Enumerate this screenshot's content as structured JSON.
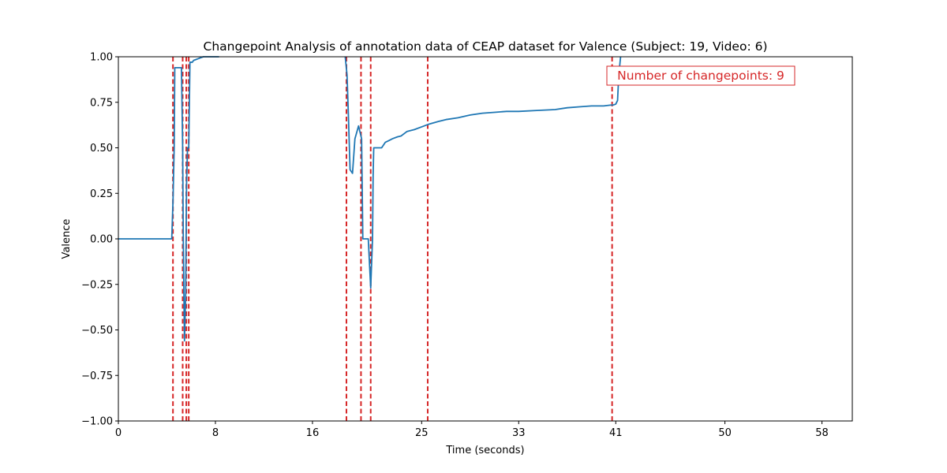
{
  "chart_data": {
    "type": "line",
    "title": "Changepoint Analysis of annotation data of CEAP dataset for Valence (Subject: 19, Video: 6)",
    "xlabel": "Time (seconds)",
    "ylabel": "Valence",
    "xlim": [
      0,
      60.5
    ],
    "ylim": [
      -1.0,
      1.0
    ],
    "x_ticks": [
      0,
      8,
      16,
      25,
      33,
      41,
      50,
      58
    ],
    "y_ticks": [
      -1.0,
      -0.75,
      -0.5,
      -0.25,
      0.0,
      0.25,
      0.5,
      0.75,
      1.0
    ],
    "x_tick_labels": [
      "0",
      "8",
      "16",
      "25",
      "33",
      "41",
      "50",
      "58"
    ],
    "y_tick_labels": [
      "−1.00",
      "−0.75",
      "−0.50",
      "−0.25",
      "0.00",
      "0.25",
      "0.50",
      "0.75",
      "1.00"
    ],
    "grid": false,
    "series": [
      {
        "color": "#1f77b4",
        "segments": [
          {
            "x": [
              0,
              4.4,
              4.5,
              4.6,
              4.65,
              5.0,
              5.2,
              5.3,
              5.35,
              5.45,
              5.55,
              5.62,
              5.7,
              5.8,
              5.9,
              6.1,
              6.2,
              6.4,
              6.6,
              6.8,
              7.0,
              7.2,
              7.5,
              7.9,
              8.3
            ],
            "y": [
              0.0,
              0.0,
              0.2,
              0.5,
              0.94,
              0.94,
              0.94,
              0.5,
              0.0,
              -0.56,
              -0.3,
              0.3,
              0.5,
              0.5,
              0.97,
              0.97,
              0.98,
              0.985,
              0.99,
              0.995,
              1.0,
              1.0,
              1.0,
              1.0,
              1.0
            ]
          },
          {
            "x": [
              18.7,
              18.85,
              18.95,
              19.1,
              19.3,
              19.5,
              19.8,
              20.05,
              20.15,
              20.3,
              20.6,
              20.8,
              20.95,
              21.0,
              21.05,
              21.3,
              21.7,
              22.0,
              22.3,
              22.6,
              23.0,
              23.3,
              23.8,
              24.4,
              25.0,
              25.6,
              26.4,
              27.0,
              28.0,
              29.0,
              30.0,
              31.0,
              32.0,
              33.0,
              34.5,
              36.0,
              37.0,
              38.0,
              39.0,
              40.0,
              40.6,
              40.8,
              41.0,
              41.15,
              41.25,
              41.4
            ],
            "y": [
              1.0,
              0.9,
              0.7,
              0.38,
              0.36,
              0.55,
              0.62,
              0.55,
              0.0,
              0.0,
              0.0,
              -0.27,
              0.0,
              0.35,
              0.5,
              0.5,
              0.5,
              0.53,
              0.54,
              0.55,
              0.56,
              0.565,
              0.59,
              0.6,
              0.615,
              0.63,
              0.645,
              0.655,
              0.665,
              0.68,
              0.69,
              0.695,
              0.7,
              0.7,
              0.705,
              0.71,
              0.72,
              0.725,
              0.73,
              0.73,
              0.735,
              0.735,
              0.74,
              0.76,
              0.9,
              1.0
            ]
          }
        ]
      }
    ],
    "changepoints": [
      4.5,
      5.3,
      5.6,
      5.8,
      18.8,
      20.0,
      20.8,
      25.5,
      40.7
    ],
    "changepoint_color": "#d62728",
    "annotation": {
      "text": "Number of changepoints: 9",
      "color": "#d62728",
      "position": "top-right"
    }
  }
}
